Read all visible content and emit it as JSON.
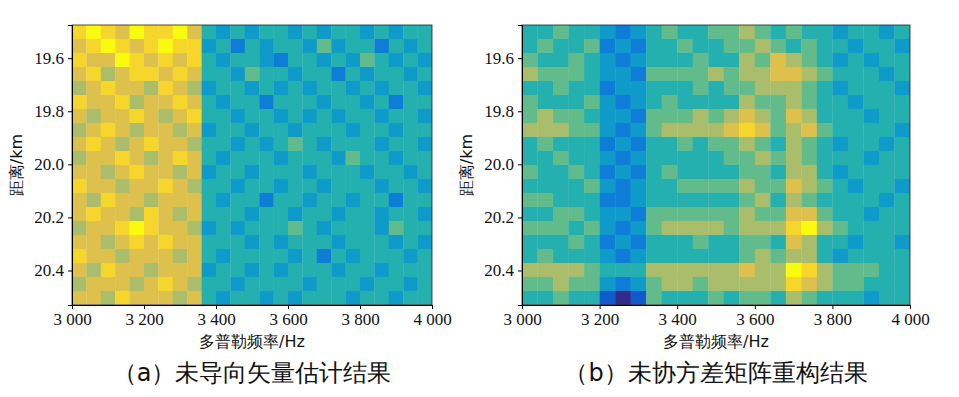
{
  "chart_data": [
    {
      "type": "heatmap",
      "title": "（a）未导向矢量估计结果",
      "x_label": "多普勒频率/Hz",
      "y_label": "距离/km",
      "xlim": [
        3000,
        4000
      ],
      "xticks": [
        {
          "value": 3000,
          "label": "3 000"
        },
        {
          "value": 3200,
          "label": "3 200"
        },
        {
          "value": 3400,
          "label": "3 400"
        },
        {
          "value": 3600,
          "label": "3 600"
        },
        {
          "value": 3800,
          "label": "3 800"
        },
        {
          "value": 4000,
          "label": "4 000"
        }
      ],
      "ylim": [
        19.475,
        20.53
      ],
      "yticks": [
        19.6,
        19.8,
        {
          "value": 20,
          "label": "20.0"
        },
        20.2,
        20.4
      ],
      "cells": [
        [
          8,
          9,
          8,
          7,
          9,
          8,
          8,
          9,
          7,
          4,
          3,
          4,
          3,
          4,
          4,
          3,
          4,
          3,
          4,
          4,
          3,
          4,
          3,
          4,
          4
        ],
        [
          7,
          8,
          9,
          8,
          7,
          8,
          9,
          8,
          8,
          3,
          4,
          2,
          4,
          3,
          4,
          4,
          3,
          5,
          3,
          4,
          4,
          2,
          4,
          3,
          4
        ],
        [
          8,
          7,
          7,
          9,
          8,
          7,
          8,
          7,
          8,
          4,
          3,
          4,
          4,
          3,
          2,
          4,
          4,
          3,
          4,
          3,
          5,
          4,
          3,
          4,
          3
        ],
        [
          7,
          8,
          6,
          7,
          8,
          8,
          7,
          8,
          7,
          4,
          4,
          3,
          5,
          4,
          4,
          3,
          4,
          4,
          2,
          4,
          3,
          4,
          4,
          3,
          4
        ],
        [
          6,
          7,
          8,
          7,
          7,
          6,
          8,
          7,
          6,
          3,
          4,
          4,
          3,
          4,
          3,
          4,
          3,
          4,
          4,
          3,
          4,
          3,
          4,
          4,
          3
        ],
        [
          8,
          7,
          7,
          8,
          6,
          7,
          7,
          8,
          7,
          4,
          3,
          4,
          4,
          2,
          4,
          4,
          4,
          3,
          4,
          4,
          3,
          4,
          2,
          4,
          4
        ],
        [
          7,
          6,
          7,
          7,
          8,
          7,
          6,
          7,
          8,
          4,
          4,
          3,
          4,
          4,
          3,
          4,
          3,
          4,
          3,
          4,
          4,
          3,
          4,
          4,
          3
        ],
        [
          6,
          7,
          8,
          7,
          6,
          7,
          7,
          6,
          7,
          3,
          4,
          4,
          3,
          4,
          4,
          3,
          4,
          4,
          4,
          3,
          4,
          4,
          3,
          4,
          4
        ],
        [
          7,
          8,
          7,
          6,
          7,
          8,
          7,
          7,
          6,
          4,
          4,
          3,
          4,
          3,
          4,
          5,
          4,
          3,
          4,
          4,
          4,
          3,
          4,
          4,
          3
        ],
        [
          6,
          7,
          7,
          8,
          7,
          6,
          7,
          8,
          7,
          4,
          3,
          4,
          4,
          4,
          3,
          4,
          4,
          4,
          3,
          5,
          4,
          4,
          3,
          4,
          4
        ],
        [
          7,
          7,
          6,
          7,
          8,
          7,
          7,
          6,
          7,
          3,
          4,
          4,
          3,
          4,
          4,
          4,
          3,
          4,
          4,
          4,
          3,
          4,
          4,
          3,
          4
        ],
        [
          8,
          7,
          7,
          6,
          7,
          7,
          8,
          7,
          6,
          4,
          4,
          3,
          4,
          4,
          3,
          4,
          4,
          3,
          4,
          4,
          4,
          3,
          4,
          4,
          3
        ],
        [
          7,
          6,
          8,
          7,
          7,
          6,
          7,
          7,
          7,
          4,
          3,
          4,
          4,
          2,
          4,
          4,
          3,
          4,
          4,
          3,
          4,
          4,
          2,
          4,
          4
        ],
        [
          7,
          8,
          7,
          7,
          6,
          8,
          7,
          6,
          7,
          4,
          4,
          4,
          3,
          4,
          4,
          3,
          4,
          4,
          3,
          4,
          4,
          3,
          4,
          4,
          3
        ],
        [
          6,
          7,
          7,
          8,
          9,
          8,
          7,
          7,
          6,
          3,
          4,
          3,
          4,
          4,
          4,
          5,
          4,
          3,
          4,
          4,
          4,
          3,
          5,
          4,
          4
        ],
        [
          7,
          7,
          6,
          7,
          8,
          7,
          8,
          7,
          7,
          4,
          4,
          4,
          3,
          4,
          3,
          4,
          4,
          4,
          3,
          4,
          4,
          4,
          3,
          4,
          3
        ],
        [
          8,
          7,
          7,
          6,
          7,
          7,
          7,
          6,
          7,
          4,
          3,
          4,
          4,
          4,
          4,
          3,
          4,
          2,
          4,
          3,
          4,
          4,
          4,
          3,
          4
        ],
        [
          7,
          6,
          8,
          7,
          7,
          6,
          7,
          7,
          7,
          3,
          4,
          4,
          3,
          4,
          3,
          4,
          4,
          4,
          3,
          4,
          4,
          3,
          4,
          4,
          4
        ],
        [
          6,
          7,
          7,
          7,
          6,
          7,
          8,
          7,
          6,
          4,
          4,
          3,
          4,
          4,
          4,
          4,
          3,
          4,
          4,
          4,
          3,
          4,
          4,
          3,
          4
        ],
        [
          7,
          7,
          6,
          8,
          7,
          7,
          7,
          6,
          7,
          4,
          3,
          4,
          4,
          3,
          4,
          3,
          4,
          4,
          4,
          3,
          4,
          4,
          3,
          4,
          4
        ]
      ]
    },
    {
      "type": "heatmap",
      "title": "（b）未协方差矩阵重构结果",
      "x_label": "多普勒频率/Hz",
      "y_label": "距离/km",
      "xlim": [
        3000,
        4000
      ],
      "xticks": [
        {
          "value": 3000,
          "label": "3 000"
        },
        {
          "value": 3200,
          "label": "3 200"
        },
        {
          "value": 3400,
          "label": "3 400"
        },
        {
          "value": 3600,
          "label": "3 600"
        },
        {
          "value": 3800,
          "label": "3 800"
        },
        {
          "value": 4000,
          "label": "4 000"
        }
      ],
      "ylim": [
        19.475,
        20.53
      ],
      "yticks": [
        19.6,
        19.8,
        {
          "value": 20,
          "label": "20.0"
        },
        20.2,
        20.4
      ],
      "cells": [
        [
          4,
          4,
          5,
          4,
          4,
          3,
          2,
          3,
          4,
          5,
          4,
          4,
          5,
          5,
          6,
          5,
          4,
          5,
          4,
          4,
          3,
          4,
          4,
          3,
          4
        ],
        [
          4,
          5,
          4,
          4,
          5,
          2,
          3,
          2,
          4,
          4,
          5,
          4,
          4,
          5,
          5,
          6,
          5,
          4,
          5,
          4,
          4,
          3,
          4,
          4,
          3
        ],
        [
          5,
          4,
          4,
          5,
          4,
          3,
          2,
          3,
          4,
          4,
          4,
          5,
          4,
          4,
          6,
          5,
          7,
          6,
          5,
          4,
          3,
          4,
          3,
          4,
          4
        ],
        [
          6,
          5,
          5,
          5,
          4,
          3,
          3,
          2,
          5,
          5,
          5,
          5,
          6,
          5,
          6,
          6,
          7,
          7,
          6,
          5,
          4,
          4,
          4,
          3,
          4
        ],
        [
          4,
          4,
          5,
          4,
          4,
          2,
          3,
          3,
          4,
          4,
          4,
          5,
          4,
          5,
          5,
          6,
          6,
          6,
          5,
          4,
          3,
          4,
          4,
          4,
          3
        ],
        [
          5,
          4,
          4,
          4,
          5,
          3,
          2,
          3,
          4,
          5,
          4,
          4,
          4,
          4,
          6,
          5,
          5,
          6,
          5,
          4,
          4,
          3,
          4,
          4,
          4
        ],
        [
          5,
          6,
          5,
          5,
          4,
          3,
          3,
          2,
          5,
          5,
          5,
          6,
          5,
          6,
          7,
          6,
          5,
          7,
          6,
          4,
          4,
          4,
          3,
          4,
          4
        ],
        [
          6,
          6,
          6,
          5,
          5,
          3,
          2,
          3,
          5,
          6,
          6,
          6,
          6,
          7,
          8,
          7,
          5,
          6,
          7,
          5,
          4,
          4,
          4,
          4,
          3
        ],
        [
          4,
          5,
          4,
          4,
          4,
          2,
          3,
          2,
          4,
          4,
          5,
          4,
          5,
          5,
          6,
          5,
          4,
          6,
          5,
          4,
          3,
          4,
          4,
          3,
          4
        ],
        [
          4,
          4,
          5,
          4,
          4,
          3,
          2,
          3,
          4,
          4,
          4,
          4,
          4,
          5,
          5,
          6,
          5,
          6,
          5,
          4,
          4,
          4,
          3,
          4,
          4
        ],
        [
          5,
          4,
          4,
          5,
          4,
          2,
          3,
          2,
          4,
          5,
          4,
          4,
          4,
          4,
          5,
          5,
          4,
          6,
          6,
          4,
          3,
          4,
          4,
          4,
          4
        ],
        [
          4,
          4,
          4,
          4,
          5,
          3,
          2,
          3,
          4,
          4,
          5,
          5,
          5,
          5,
          6,
          5,
          5,
          7,
          6,
          5,
          4,
          3,
          4,
          4,
          3
        ],
        [
          5,
          5,
          4,
          4,
          4,
          2,
          2,
          3,
          4,
          4,
          4,
          4,
          4,
          4,
          5,
          6,
          4,
          6,
          5,
          4,
          4,
          4,
          4,
          3,
          4
        ],
        [
          4,
          4,
          5,
          5,
          4,
          3,
          3,
          2,
          5,
          5,
          5,
          5,
          5,
          5,
          6,
          5,
          5,
          7,
          7,
          5,
          4,
          4,
          3,
          4,
          4
        ],
        [
          5,
          5,
          5,
          4,
          5,
          3,
          2,
          3,
          5,
          6,
          6,
          6,
          6,
          5,
          6,
          6,
          6,
          8,
          9,
          6,
          5,
          4,
          4,
          4,
          4
        ],
        [
          4,
          4,
          4,
          5,
          4,
          2,
          3,
          2,
          4,
          4,
          4,
          5,
          4,
          4,
          5,
          5,
          4,
          7,
          6,
          4,
          4,
          3,
          4,
          4,
          3
        ],
        [
          4,
          5,
          4,
          4,
          4,
          3,
          2,
          3,
          4,
          4,
          4,
          4,
          4,
          4,
          5,
          6,
          5,
          6,
          6,
          4,
          3,
          4,
          4,
          4,
          4
        ],
        [
          6,
          6,
          6,
          6,
          5,
          4,
          4,
          4,
          6,
          6,
          6,
          6,
          6,
          6,
          7,
          6,
          6,
          9,
          8,
          6,
          5,
          5,
          5,
          4,
          4
        ],
        [
          5,
          5,
          6,
          5,
          5,
          3,
          2,
          3,
          5,
          6,
          6,
          5,
          6,
          6,
          6,
          6,
          6,
          8,
          7,
          6,
          5,
          5,
          4,
          4,
          4
        ],
        [
          4,
          4,
          5,
          4,
          4,
          1,
          0,
          1,
          5,
          4,
          4,
          4,
          5,
          4,
          5,
          5,
          4,
          6,
          5,
          4,
          4,
          4,
          3,
          4,
          4
        ]
      ]
    }
  ]
}
